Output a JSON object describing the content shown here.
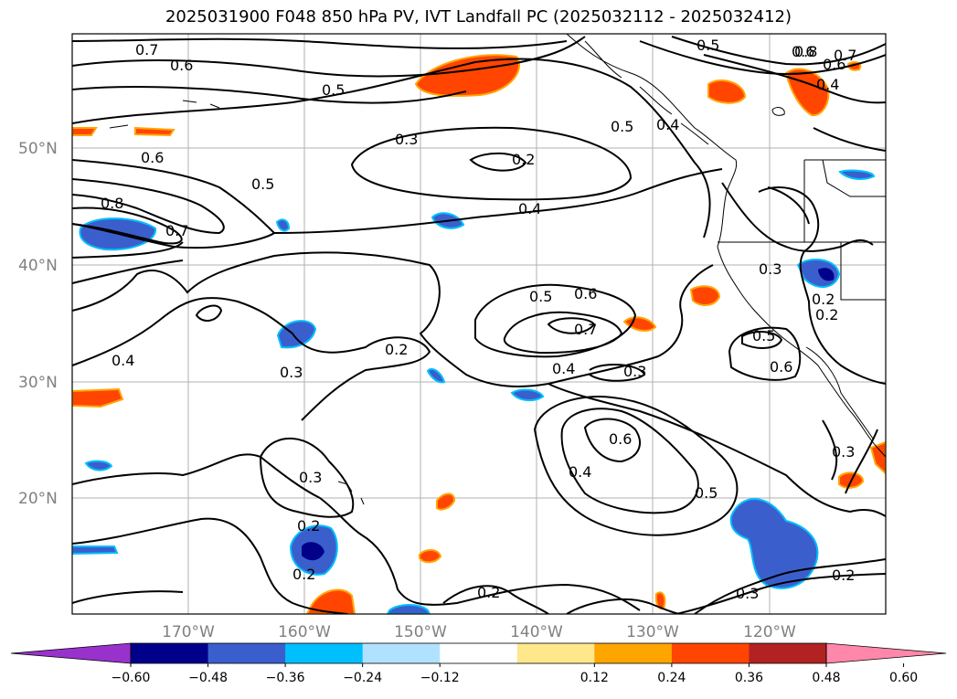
{
  "title": "2025031900 F048 850 hPa PV, IVT Landfall PC (2025032112 - 2025032412)",
  "latitude_labels": [
    "50°N",
    "40°N",
    "30°N",
    "20°N"
  ],
  "longitude_labels": [
    "170°W",
    "160°W",
    "150°W",
    "140°W",
    "130°W",
    "120°W"
  ],
  "contour_labels": [
    "0.7",
    "0.6",
    "0.5",
    "0.3",
    "0.2",
    "0.5",
    "0.6",
    "0.4",
    "0.8",
    "0.7",
    "0.6",
    "0.4",
    "0.5",
    "0.6",
    "0.8",
    "0.7",
    "0.5",
    "0.4",
    "0.5",
    "0.6",
    "0.7",
    "0.2",
    "0.3",
    "0.4",
    "0.4",
    "0.3",
    "0.3",
    "0.2",
    "0.5",
    "0.6",
    "0.3",
    "0.2",
    "0.6",
    "0.4",
    "0.5",
    "0.3",
    "0.2",
    "0.2",
    "0.2",
    "0.3",
    "0.2"
  ],
  "colorbar": {
    "ticks": [
      "−0.60",
      "−0.48",
      "−0.36",
      "−0.24",
      "−0.12",
      "0.12",
      "0.24",
      "0.36",
      "0.48",
      "0.60"
    ],
    "colors": [
      "#9932cc",
      "#00008b",
      "#3a5fcd",
      "#00bfff",
      "#b0e2ff",
      "#ffffff",
      "#ffe88c",
      "#ffa500",
      "#ff4500",
      "#b22222",
      "#ff88aa"
    ]
  }
}
